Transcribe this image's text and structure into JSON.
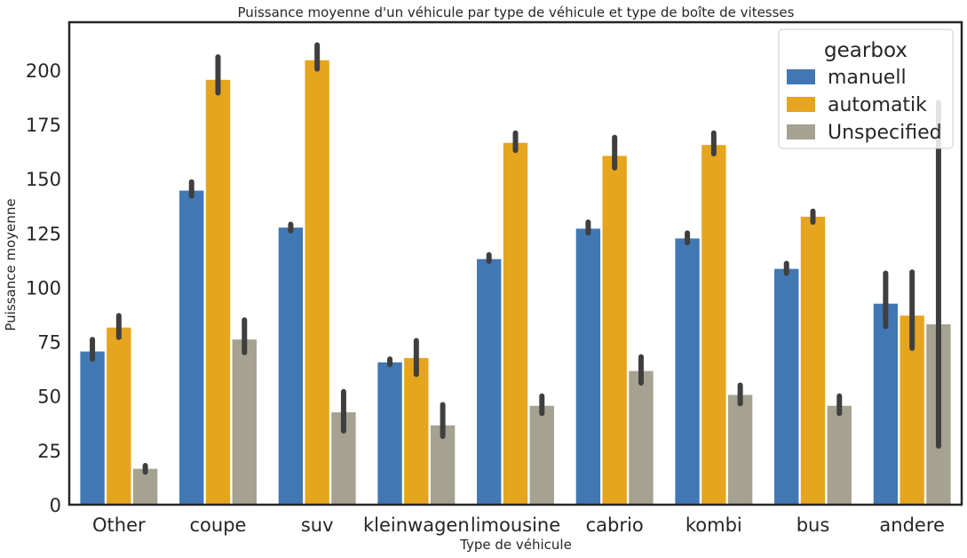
{
  "chart_data": {
    "type": "bar",
    "title": "Puissance moyenne d'un véhicule par type de véhicule et type de boîte de vitesses",
    "xlabel": "Type de véhicule",
    "ylabel": "Puissance moyenne",
    "ylim": [
      0,
      222
    ],
    "yticks": [
      0,
      25,
      50,
      75,
      100,
      125,
      150,
      175,
      200
    ],
    "grid": false,
    "categories": [
      "Other",
      "coupe",
      "suv",
      "kleinwagen",
      "limousine",
      "cabrio",
      "kombi",
      "bus",
      "andere"
    ],
    "legend": {
      "title": "gearbox",
      "placement": "top-right"
    },
    "series": [
      {
        "name": "manuell",
        "color": "#4178b4",
        "values": [
          70.5,
          144.5,
          127.5,
          65.5,
          113,
          127,
          122.5,
          108.5,
          92.5
        ],
        "ci": [
          [
            67,
            76
          ],
          [
            142,
            148.5
          ],
          [
            126,
            129
          ],
          [
            64.5,
            67
          ],
          [
            112,
            115
          ],
          [
            125,
            130
          ],
          [
            120.5,
            125
          ],
          [
            106.5,
            111
          ],
          [
            82,
            106.5
          ]
        ]
      },
      {
        "name": "automatik",
        "color": "#e6a51e",
        "values": [
          81.5,
          195.5,
          204.5,
          67.5,
          166.5,
          160.5,
          165.5,
          132.5,
          87
        ],
        "ci": [
          [
            77,
            87
          ],
          [
            189.5,
            206
          ],
          [
            200.5,
            211.5
          ],
          [
            60,
            75.5
          ],
          [
            163,
            171
          ],
          [
            155,
            169
          ],
          [
            161.5,
            171
          ],
          [
            130,
            135
          ],
          [
            72,
            107
          ]
        ]
      },
      {
        "name": "Unspecified",
        "color": "#a5a292",
        "values": [
          16.5,
          76,
          42.5,
          36.5,
          45.5,
          61.5,
          50.5,
          45.5,
          83
        ],
        "ci": [
          [
            15,
            18
          ],
          [
            70,
            85
          ],
          [
            34,
            52
          ],
          [
            31.5,
            46
          ],
          [
            42,
            50
          ],
          [
            56,
            68
          ],
          [
            46.5,
            55
          ],
          [
            42,
            50
          ],
          [
            27,
            185
          ]
        ]
      }
    ]
  }
}
